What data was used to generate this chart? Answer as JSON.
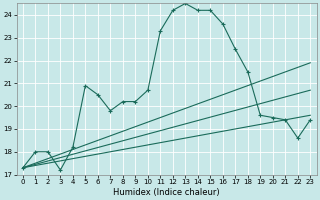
{
  "title": "",
  "xlabel": "Humidex (Indice chaleur)",
  "background_color": "#c8e8e8",
  "grid_color": "#ffffff",
  "line_color": "#1a6b5a",
  "xlim": [
    -0.5,
    23.5
  ],
  "ylim": [
    17,
    24.5
  ],
  "yticks": [
    17,
    18,
    19,
    20,
    21,
    22,
    23,
    24
  ],
  "xticks": [
    0,
    1,
    2,
    3,
    4,
    5,
    6,
    7,
    8,
    9,
    10,
    11,
    12,
    13,
    14,
    15,
    16,
    17,
    18,
    19,
    20,
    21,
    22,
    23
  ],
  "series": [
    {
      "x": [
        0,
        1,
        2,
        3,
        4,
        5,
        6,
        7,
        8,
        9,
        10,
        11,
        12,
        13,
        14,
        15,
        16,
        17,
        18,
        19,
        20,
        21,
        22,
        23
      ],
      "y": [
        17.3,
        18.0,
        18.0,
        17.2,
        18.2,
        20.9,
        20.5,
        19.8,
        20.2,
        20.2,
        20.7,
        23.3,
        24.2,
        24.5,
        24.2,
        24.2,
        23.6,
        22.5,
        21.5,
        19.6,
        19.5,
        19.4,
        18.6,
        19.4
      ],
      "marker": "+"
    },
    {
      "x": [
        0,
        23
      ],
      "y": [
        17.3,
        21.9
      ],
      "marker": null
    },
    {
      "x": [
        0,
        23
      ],
      "y": [
        17.3,
        20.7
      ],
      "marker": null
    },
    {
      "x": [
        0,
        23
      ],
      "y": [
        17.3,
        19.6
      ],
      "marker": null
    }
  ]
}
